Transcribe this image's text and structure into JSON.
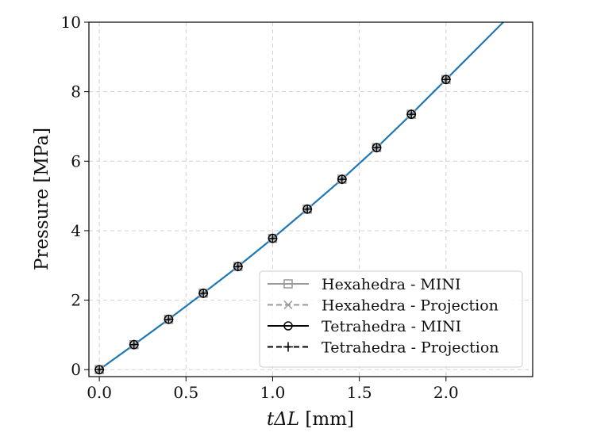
{
  "chart_data": {
    "type": "line",
    "title": "",
    "xlabel_italic": "tΔL",
    "xlabel_unit": " [mm]",
    "ylabel": "Pressure [MPa]",
    "xlim": [
      -0.06,
      2.5
    ],
    "ylim": [
      -0.2,
      10
    ],
    "xticks": [
      0.0,
      0.5,
      1.0,
      1.5,
      2.0
    ],
    "xtick_labels": [
      "0.0",
      "0.5",
      "1.0",
      "1.5",
      "2.0"
    ],
    "yticks": [
      0,
      2,
      4,
      6,
      8,
      10
    ],
    "ytick_labels": [
      "0",
      "2",
      "4",
      "6",
      "8",
      "10"
    ],
    "grid": true,
    "legend_position": "bottom-right",
    "curve": {
      "color": "#1f77b4",
      "x": [
        0.0,
        0.2,
        0.4,
        0.6,
        0.8,
        1.0,
        1.2,
        1.4,
        1.6,
        1.8,
        2.0,
        2.2,
        2.33
      ],
      "y": [
        0.0,
        0.72,
        1.45,
        2.2,
        2.97,
        3.78,
        4.62,
        5.48,
        6.39,
        7.35,
        8.35,
        9.35,
        10.0
      ]
    },
    "series": [
      {
        "name": "Hexahedra - MINI",
        "color": "#999999",
        "linestyle": "solid",
        "marker": "square",
        "x": [
          0.0,
          0.2,
          0.4,
          0.6,
          0.8,
          1.0,
          1.2,
          1.4,
          1.6,
          1.8,
          2.0
        ],
        "values": [
          0.0,
          0.72,
          1.45,
          2.2,
          2.97,
          3.78,
          4.62,
          5.48,
          6.39,
          7.35,
          8.35
        ]
      },
      {
        "name": "Hexahedra - Projection",
        "color": "#999999",
        "linestyle": "dashed",
        "marker": "x",
        "x": [
          0.0,
          0.2,
          0.4,
          0.6,
          0.8,
          1.0,
          1.2,
          1.4,
          1.6,
          1.8,
          2.0
        ],
        "values": [
          0.0,
          0.72,
          1.45,
          2.2,
          2.97,
          3.78,
          4.62,
          5.48,
          6.39,
          7.35,
          8.35
        ]
      },
      {
        "name": "Tetrahedra - MINI",
        "color": "#000000",
        "linestyle": "solid",
        "marker": "circle",
        "x": [
          0.0,
          0.2,
          0.4,
          0.6,
          0.8,
          1.0,
          1.2,
          1.4,
          1.6,
          1.8,
          2.0
        ],
        "values": [
          0.0,
          0.72,
          1.45,
          2.2,
          2.97,
          3.78,
          4.62,
          5.48,
          6.39,
          7.35,
          8.35
        ]
      },
      {
        "name": "Tetrahedra - Projection",
        "color": "#000000",
        "linestyle": "dashed",
        "marker": "plus",
        "x": [
          0.0,
          0.2,
          0.4,
          0.6,
          0.8,
          1.0,
          1.2,
          1.4,
          1.6,
          1.8,
          2.0
        ],
        "values": [
          0.0,
          0.72,
          1.45,
          2.2,
          2.97,
          3.78,
          4.62,
          5.48,
          6.39,
          7.35,
          8.35
        ]
      }
    ]
  }
}
